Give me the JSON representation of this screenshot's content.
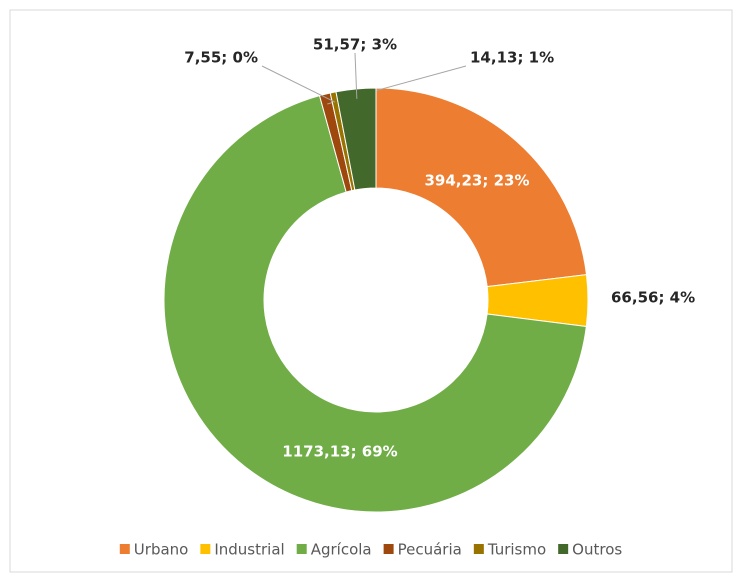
{
  "chart_data": {
    "type": "donut",
    "categories": [
      "Urbano",
      "Industrial",
      "Agrícola",
      "Pecuária",
      "Turismo",
      "Outros"
    ],
    "values": [
      394.23,
      66.56,
      1173.13,
      14.13,
      7.55,
      51.57
    ],
    "value_labels": [
      "394,23; 23%",
      "66,56; 4%",
      "1173,13; 69%",
      "14,13; 1%",
      "7,55; 0%",
      "51,57; 3%"
    ],
    "colors": [
      "#ed7d31",
      "#ffc000",
      "#70ad47",
      "#9e480e",
      "#997300",
      "#43682b"
    ],
    "legend": "bottom"
  }
}
